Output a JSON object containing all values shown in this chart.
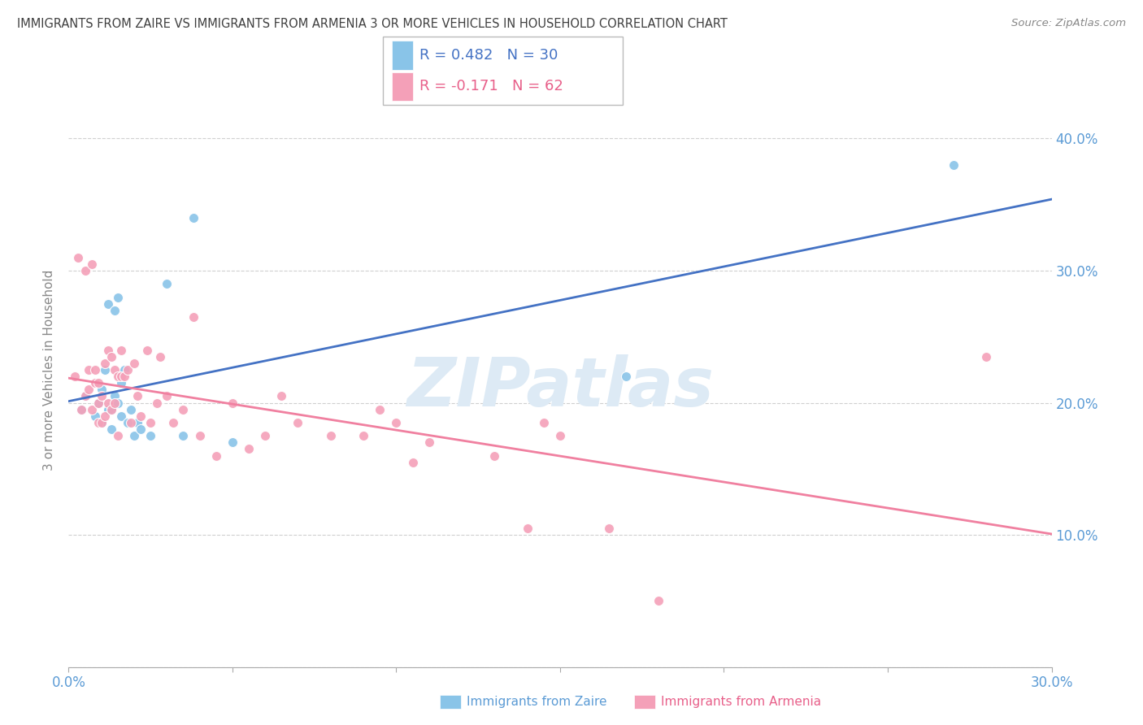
{
  "title": "IMMIGRANTS FROM ZAIRE VS IMMIGRANTS FROM ARMENIA 3 OR MORE VEHICLES IN HOUSEHOLD CORRELATION CHART",
  "source": "Source: ZipAtlas.com",
  "ylabel": "3 or more Vehicles in Household",
  "xlim": [
    0.0,
    0.3
  ],
  "ylim": [
    0.0,
    0.45
  ],
  "x_ticks": [
    0.0,
    0.05,
    0.1,
    0.15,
    0.2,
    0.25,
    0.3
  ],
  "x_tick_labels": [
    "0.0%",
    "",
    "",
    "",
    "",
    "",
    "30.0%"
  ],
  "y_ticks": [
    0.0,
    0.1,
    0.2,
    0.3,
    0.4
  ],
  "y_tick_labels": [
    "",
    "10.0%",
    "20.0%",
    "30.0%",
    "40.0%"
  ],
  "legend_r_zaire": "R = 0.482",
  "legend_n_zaire": "N = 30",
  "legend_r_armenia": "R = -0.171",
  "legend_n_armenia": "N = 62",
  "zaire_color": "#89c4e8",
  "armenia_color": "#f4a0b8",
  "zaire_line_color": "#4472c4",
  "armenia_line_color": "#f080a0",
  "legend_text_blue": "#4472c4",
  "legend_text_pink": "#e8608a",
  "axis_label_color": "#5b9bd5",
  "title_color": "#404040",
  "grid_color": "#d0d0d0",
  "watermark": "ZIPatlas",
  "zaire_x": [
    0.004,
    0.005,
    0.008,
    0.009,
    0.01,
    0.01,
    0.011,
    0.012,
    0.012,
    0.013,
    0.013,
    0.014,
    0.014,
    0.015,
    0.015,
    0.016,
    0.016,
    0.017,
    0.018,
    0.019,
    0.02,
    0.021,
    0.022,
    0.025,
    0.03,
    0.035,
    0.038,
    0.05,
    0.17,
    0.27
  ],
  "zaire_y": [
    0.195,
    0.205,
    0.19,
    0.2,
    0.185,
    0.21,
    0.225,
    0.195,
    0.275,
    0.18,
    0.195,
    0.205,
    0.27,
    0.2,
    0.28,
    0.19,
    0.215,
    0.225,
    0.185,
    0.195,
    0.175,
    0.185,
    0.18,
    0.175,
    0.29,
    0.175,
    0.34,
    0.17,
    0.22,
    0.38
  ],
  "armenia_x": [
    0.002,
    0.003,
    0.004,
    0.005,
    0.005,
    0.006,
    0.006,
    0.007,
    0.007,
    0.008,
    0.008,
    0.009,
    0.009,
    0.009,
    0.01,
    0.01,
    0.011,
    0.011,
    0.012,
    0.012,
    0.013,
    0.013,
    0.014,
    0.014,
    0.015,
    0.015,
    0.016,
    0.016,
    0.017,
    0.018,
    0.019,
    0.02,
    0.021,
    0.022,
    0.024,
    0.025,
    0.027,
    0.028,
    0.03,
    0.032,
    0.035,
    0.038,
    0.04,
    0.045,
    0.05,
    0.055,
    0.06,
    0.065,
    0.07,
    0.08,
    0.09,
    0.095,
    0.1,
    0.105,
    0.11,
    0.13,
    0.14,
    0.145,
    0.15,
    0.165,
    0.18,
    0.28
  ],
  "armenia_y": [
    0.22,
    0.31,
    0.195,
    0.205,
    0.3,
    0.21,
    0.225,
    0.195,
    0.305,
    0.215,
    0.225,
    0.185,
    0.2,
    0.215,
    0.185,
    0.205,
    0.19,
    0.23,
    0.2,
    0.24,
    0.195,
    0.235,
    0.2,
    0.225,
    0.175,
    0.22,
    0.22,
    0.24,
    0.22,
    0.225,
    0.185,
    0.23,
    0.205,
    0.19,
    0.24,
    0.185,
    0.2,
    0.235,
    0.205,
    0.185,
    0.195,
    0.265,
    0.175,
    0.16,
    0.2,
    0.165,
    0.175,
    0.205,
    0.185,
    0.175,
    0.175,
    0.195,
    0.185,
    0.155,
    0.17,
    0.16,
    0.105,
    0.185,
    0.175,
    0.105,
    0.05,
    0.235
  ]
}
